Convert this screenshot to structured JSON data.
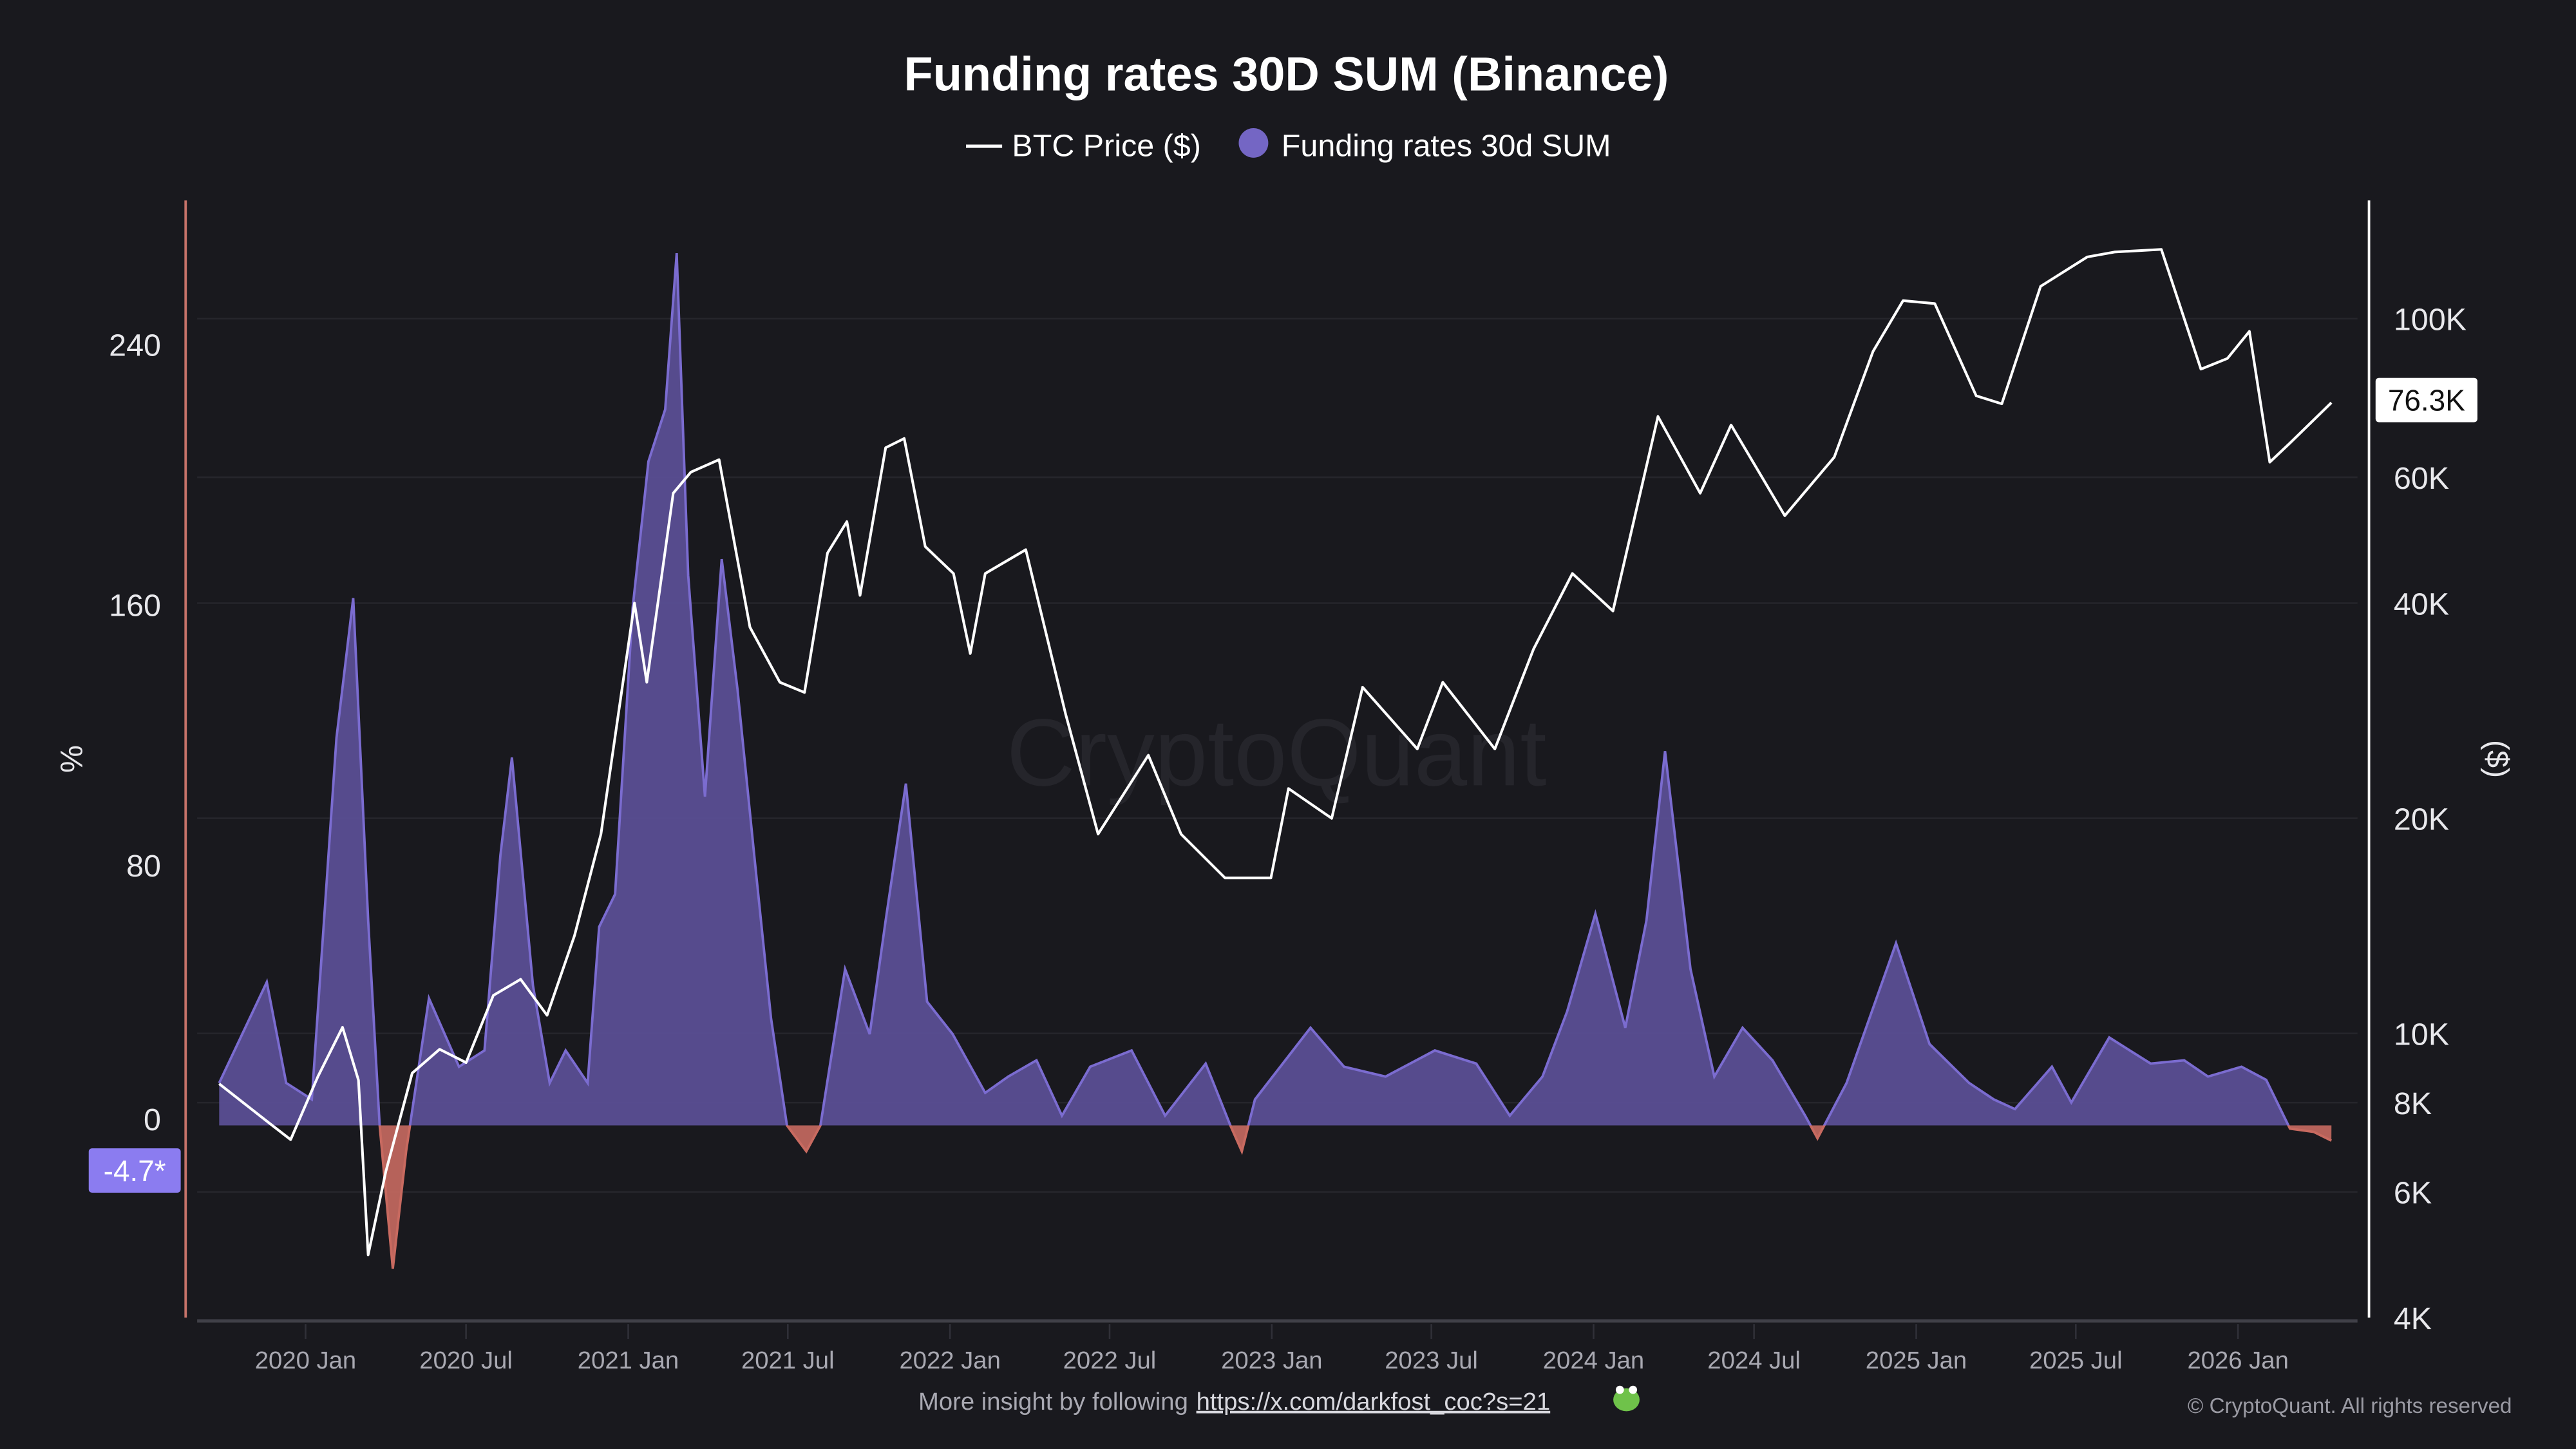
{
  "chart_data": {
    "type": "line",
    "title": "Funding rates 30D SUM (Binance)",
    "legend": {
      "placement": "top-center",
      "items": [
        "BTC Price ($)",
        "Funding rates 30d SUM"
      ]
    },
    "watermark": "CryptoQuant",
    "left_axis": {
      "label": "%",
      "ticks": [
        "240",
        "160",
        "80",
        "0"
      ],
      "tick_values": [
        240,
        160,
        80,
        0
      ],
      "range": [
        -59,
        284
      ]
    },
    "right_axis": {
      "label": "($)",
      "scale": "log",
      "ticks": [
        "100K",
        "60K",
        "40K",
        "20K",
        "10K",
        "8K",
        "6K",
        "4K"
      ],
      "tick_values": [
        100000,
        60000,
        40000,
        20000,
        10000,
        8000,
        6000,
        4000
      ],
      "range": [
        4000,
        146000
      ]
    },
    "x_axis": {
      "ticks": [
        "2020 Jan",
        "2020 Jul",
        "2021 Jan",
        "2021 Jul",
        "2022 Jan",
        "2022 Jul",
        "2023 Jan",
        "2023 Jul",
        "2024 Jan",
        "2024 Jul",
        "2025 Jan",
        "2025 Jul",
        "2026 Jan"
      ],
      "tick_dates": [
        "2020-01-01",
        "2020-07-01",
        "2021-01-01",
        "2021-07-01",
        "2022-01-01",
        "2022-07-01",
        "2023-01-01",
        "2023-07-01",
        "2024-01-01",
        "2024-07-01",
        "2025-01-01",
        "2025-07-01",
        "2026-01-01"
      ]
    },
    "grid": true,
    "last_value_labels": {
      "price": "76.3K",
      "funding": "-4.7*"
    },
    "colors": {
      "price": "#ffffff",
      "funding_line": "#7b6cd0",
      "funding_fill_pos": "#5a4e93",
      "funding_fill_neg": "#c86a60",
      "funding_label_bg": "#8b7cf0",
      "background": "#19191e"
    },
    "series": [
      {
        "name": "BTC Price ($)",
        "axis": "right",
        "points": [
          [
            "2019-09-25",
            8500
          ],
          [
            "2019-11-20",
            7500
          ],
          [
            "2019-12-15",
            7100
          ],
          [
            "2020-01-15",
            8700
          ],
          [
            "2020-02-12",
            10200
          ],
          [
            "2020-03-01",
            8600
          ],
          [
            "2020-03-12",
            4900
          ],
          [
            "2020-04-01",
            6400
          ],
          [
            "2020-05-01",
            8800
          ],
          [
            "2020-06-01",
            9500
          ],
          [
            "2020-07-01",
            9100
          ],
          [
            "2020-08-01",
            11300
          ],
          [
            "2020-09-01",
            11900
          ],
          [
            "2020-10-01",
            10600
          ],
          [
            "2020-11-01",
            13700
          ],
          [
            "2020-12-01",
            19000
          ],
          [
            "2021-01-08",
            40000
          ],
          [
            "2021-01-22",
            31000
          ],
          [
            "2021-02-21",
            57000
          ],
          [
            "2021-03-13",
            61000
          ],
          [
            "2021-04-14",
            63500
          ],
          [
            "2021-05-19",
            37000
          ],
          [
            "2021-06-22",
            31000
          ],
          [
            "2021-07-20",
            30000
          ],
          [
            "2021-08-15",
            47000
          ],
          [
            "2021-09-06",
            52000
          ],
          [
            "2021-09-21",
            41000
          ],
          [
            "2021-10-20",
            66000
          ],
          [
            "2021-11-10",
            68000
          ],
          [
            "2021-12-04",
            48000
          ],
          [
            "2022-01-05",
            44000
          ],
          [
            "2022-01-24",
            34000
          ],
          [
            "2022-02-10",
            44000
          ],
          [
            "2022-03-28",
            47500
          ],
          [
            "2022-05-12",
            28000
          ],
          [
            "2022-06-18",
            19000
          ],
          [
            "2022-08-14",
            24500
          ],
          [
            "2022-09-20",
            19000
          ],
          [
            "2022-11-09",
            16500
          ],
          [
            "2022-12-31",
            16500
          ],
          [
            "2023-01-20",
            22000
          ],
          [
            "2023-03-10",
            20000
          ],
          [
            "2023-04-14",
            30500
          ],
          [
            "2023-06-15",
            25000
          ],
          [
            "2023-07-14",
            31000
          ],
          [
            "2023-09-11",
            25000
          ],
          [
            "2023-10-25",
            34500
          ],
          [
            "2023-12-08",
            44000
          ],
          [
            "2024-01-23",
            39000
          ],
          [
            "2024-03-14",
            73000
          ],
          [
            "2024-05-01",
            57000
          ],
          [
            "2024-06-05",
            71000
          ],
          [
            "2024-08-05",
            53000
          ],
          [
            "2024-09-30",
            64000
          ],
          [
            "2024-11-13",
            90000
          ],
          [
            "2024-12-17",
            106000
          ],
          [
            "2025-01-22",
            105000
          ],
          [
            "2025-03-10",
            78000
          ],
          [
            "2025-04-08",
            76000
          ],
          [
            "2025-05-22",
            111000
          ],
          [
            "2025-07-14",
            122000
          ],
          [
            "2025-08-14",
            124000
          ],
          [
            "2025-10-06",
            125000
          ],
          [
            "2025-11-20",
            85000
          ],
          [
            "2025-12-20",
            88000
          ],
          [
            "2026-01-14",
            96000
          ],
          [
            "2026-02-06",
            63000
          ],
          [
            "2026-03-01",
            67000
          ],
          [
            "2026-04-17",
            76300
          ]
        ]
      },
      {
        "name": "Funding rates 30d SUM",
        "axis": "left",
        "points": [
          [
            "2019-09-25",
            13
          ],
          [
            "2019-11-18",
            44
          ],
          [
            "2019-12-10",
            13
          ],
          [
            "2020-01-08",
            8
          ],
          [
            "2020-02-05",
            119
          ],
          [
            "2020-02-24",
            162
          ],
          [
            "2020-03-12",
            63
          ],
          [
            "2020-03-25",
            0
          ],
          [
            "2020-04-09",
            -44
          ],
          [
            "2020-04-24",
            -8
          ],
          [
            "2020-05-20",
            39
          ],
          [
            "2020-06-23",
            18
          ],
          [
            "2020-07-22",
            23
          ],
          [
            "2020-08-09",
            83
          ],
          [
            "2020-08-22",
            113
          ],
          [
            "2020-09-15",
            43
          ],
          [
            "2020-10-04",
            13
          ],
          [
            "2020-10-22",
            23
          ],
          [
            "2020-11-16",
            13
          ],
          [
            "2020-11-29",
            61
          ],
          [
            "2020-12-17",
            71
          ],
          [
            "2021-01-06",
            159
          ],
          [
            "2021-01-24",
            204
          ],
          [
            "2021-02-12",
            220
          ],
          [
            "2021-02-25",
            268
          ],
          [
            "2021-03-10",
            169
          ],
          [
            "2021-03-29",
            101
          ],
          [
            "2021-04-17",
            174
          ],
          [
            "2021-05-05",
            134
          ],
          [
            "2021-05-24",
            83
          ],
          [
            "2021-06-12",
            33
          ],
          [
            "2021-06-30",
            0
          ],
          [
            "2021-07-22",
            -8
          ],
          [
            "2021-08-07",
            0
          ],
          [
            "2021-09-04",
            48
          ],
          [
            "2021-10-02",
            28
          ],
          [
            "2021-10-20",
            63
          ],
          [
            "2021-11-12",
            105
          ],
          [
            "2021-12-06",
            38
          ],
          [
            "2022-01-04",
            28
          ],
          [
            "2022-02-10",
            10
          ],
          [
            "2022-03-08",
            15
          ],
          [
            "2022-04-09",
            20
          ],
          [
            "2022-05-08",
            3
          ],
          [
            "2022-06-09",
            18
          ],
          [
            "2022-07-26",
            23
          ],
          [
            "2022-09-02",
            3
          ],
          [
            "2022-10-18",
            19
          ],
          [
            "2022-11-15",
            0
          ],
          [
            "2022-11-28",
            -8
          ],
          [
            "2022-12-13",
            8
          ],
          [
            "2023-02-14",
            30
          ],
          [
            "2023-03-24",
            18
          ],
          [
            "2023-05-10",
            15
          ],
          [
            "2023-07-05",
            23
          ],
          [
            "2023-08-21",
            19
          ],
          [
            "2023-09-28",
            3
          ],
          [
            "2023-11-04",
            15
          ],
          [
            "2023-12-02",
            35
          ],
          [
            "2024-01-03",
            65
          ],
          [
            "2024-02-06",
            30
          ],
          [
            "2024-03-01",
            63
          ],
          [
            "2024-03-22",
            115
          ],
          [
            "2024-04-20",
            48
          ],
          [
            "2024-05-17",
            15
          ],
          [
            "2024-06-18",
            30
          ],
          [
            "2024-07-22",
            20
          ],
          [
            "2024-08-28",
            3
          ],
          [
            "2024-09-11",
            -4
          ],
          [
            "2024-10-14",
            13
          ],
          [
            "2024-12-09",
            56
          ],
          [
            "2025-01-16",
            25
          ],
          [
            "2025-03-02",
            13
          ],
          [
            "2025-03-30",
            8
          ],
          [
            "2025-04-23",
            5
          ],
          [
            "2025-06-04",
            18
          ],
          [
            "2025-06-26",
            7
          ],
          [
            "2025-08-08",
            27
          ],
          [
            "2025-09-24",
            19
          ],
          [
            "2025-11-01",
            20
          ],
          [
            "2025-11-28",
            15
          ],
          [
            "2026-01-05",
            18
          ],
          [
            "2026-02-02",
            14
          ],
          [
            "2026-03-01",
            -1
          ],
          [
            "2026-03-28",
            -2
          ],
          [
            "2026-04-17",
            -4.7
          ]
        ]
      }
    ]
  },
  "footer": {
    "prefix": "More insight by following",
    "link": "https://x.com/darkfost_coc?s=21",
    "copyright": "© CryptoQuant. All rights reserved"
  }
}
